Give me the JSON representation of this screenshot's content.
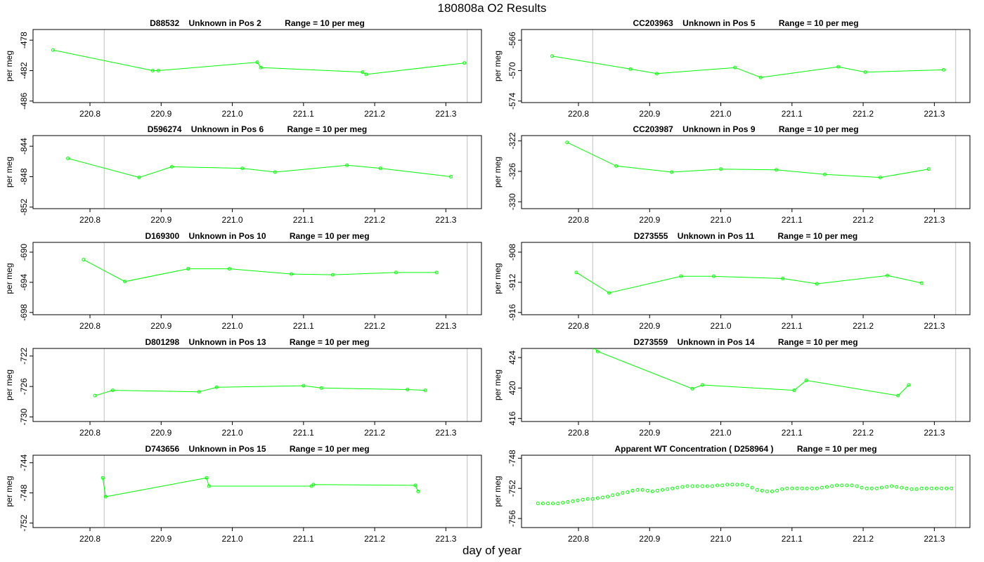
{
  "title": "180808a  O2 Results",
  "x_axis_label": "day of year",
  "line_color": "#00ff00",
  "ref_line_color": "#bfbfbf",
  "chart_data": [
    {
      "type": "line",
      "title": "D88532    Unknown in Pos 2          Range = 10 per meg",
      "ylabel": "per meg",
      "xlim": [
        220.72,
        221.35
      ],
      "ylim": [
        -486.2,
        -476.6
      ],
      "xticks": [
        220.8,
        220.9,
        221.0,
        221.1,
        221.2,
        221.3
      ],
      "yticks": [
        -478,
        -482,
        -486
      ],
      "vlines": [
        220.82,
        221.33
      ],
      "x": [
        220.748,
        220.888,
        220.896,
        221.035,
        221.04,
        221.183,
        221.188,
        221.326
      ],
      "y": [
        -479.3,
        -482.0,
        -482.0,
        -480.9,
        -481.6,
        -482.2,
        -482.5,
        -481.0
      ]
    },
    {
      "type": "line",
      "title": "CC203963    Unknown in Pos 5          Range = 10 per meg",
      "ylabel": "per meg",
      "xlim": [
        220.72,
        221.35
      ],
      "ylim": [
        -574.2,
        -564.6
      ],
      "xticks": [
        220.8,
        220.9,
        221.0,
        221.1,
        221.2,
        221.3
      ],
      "yticks": [
        -566,
        -570,
        -574
      ],
      "vlines": [
        220.82,
        221.33
      ],
      "x": [
        220.763,
        220.873,
        220.91,
        221.02,
        221.056,
        221.165,
        221.203,
        221.313
      ],
      "y": [
        -568.1,
        -569.8,
        -570.4,
        -569.6,
        -570.9,
        -569.5,
        -570.2,
        -569.9
      ]
    },
    {
      "type": "line",
      "title": "D596274    Unknown in Pos 6          Range = 10 per meg",
      "ylabel": "per meg",
      "xlim": [
        220.72,
        221.35
      ],
      "ylim": [
        -852.2,
        -842.6
      ],
      "xticks": [
        220.8,
        220.9,
        221.0,
        221.1,
        221.2,
        221.3
      ],
      "yticks": [
        -844,
        -848,
        -852
      ],
      "vlines": [
        220.82,
        221.33
      ],
      "x": [
        220.769,
        220.869,
        220.915,
        221.014,
        221.06,
        221.161,
        221.208,
        221.307
      ],
      "y": [
        -845.6,
        -848.1,
        -846.7,
        -846.9,
        -847.4,
        -846.5,
        -846.9,
        -848.0
      ]
    },
    {
      "type": "line",
      "title": "CC203987    Unknown in Pos 9          Range = 10 per meg",
      "ylabel": "per meg",
      "xlim": [
        220.72,
        221.35
      ],
      "ylim": [
        -330.9,
        -321.3
      ],
      "xticks": [
        220.8,
        220.9,
        221.0,
        221.1,
        221.2,
        221.3
      ],
      "yticks": [
        -322,
        -326,
        -330
      ],
      "vlines": [
        220.82,
        221.33
      ],
      "x": [
        220.784,
        220.853,
        220.931,
        221.0,
        221.078,
        221.146,
        221.224,
        221.292
      ],
      "y": [
        -322.2,
        -325.3,
        -326.1,
        -325.7,
        -325.8,
        -326.4,
        -326.8,
        -325.7
      ]
    },
    {
      "type": "line",
      "title": "D169300    Unknown in Pos 10          Range = 10 per meg",
      "ylabel": "per meg",
      "xlim": [
        220.72,
        221.35
      ],
      "ylim": [
        -698.3,
        -688.7
      ],
      "xticks": [
        220.8,
        220.9,
        221.0,
        221.1,
        221.2,
        221.3
      ],
      "yticks": [
        -690,
        -694,
        -698
      ],
      "vlines": [
        220.82,
        221.33
      ],
      "x": [
        220.791,
        220.849,
        220.938,
        220.996,
        221.083,
        221.141,
        221.23,
        221.287
      ],
      "y": [
        -691.0,
        -693.9,
        -692.2,
        -692.2,
        -692.9,
        -693.0,
        -692.7,
        -692.7
      ]
    },
    {
      "type": "line",
      "title": "D273555    Unknown in Pos 11          Range = 10 per meg",
      "ylabel": "per meg",
      "xlim": [
        220.72,
        221.35
      ],
      "ylim": [
        -916.3,
        -906.7
      ],
      "xticks": [
        220.8,
        220.9,
        221.0,
        221.1,
        221.2,
        221.3
      ],
      "yticks": [
        -908,
        -912,
        -916
      ],
      "vlines": [
        220.82,
        221.33
      ],
      "x": [
        220.797,
        220.843,
        220.944,
        220.99,
        221.087,
        221.135,
        221.234,
        221.282
      ],
      "y": [
        -910.7,
        -913.4,
        -911.2,
        -911.2,
        -911.5,
        -912.2,
        -911.1,
        -912.1
      ]
    },
    {
      "type": "line",
      "title": "D801298    Unknown in Pos 13          Range = 10 per meg",
      "ylabel": "per meg",
      "xlim": [
        220.72,
        221.35
      ],
      "ylim": [
        -730.6,
        -721.0
      ],
      "xticks": [
        220.8,
        220.9,
        221.0,
        221.1,
        221.2,
        221.3
      ],
      "yticks": [
        -722,
        -726,
        -730
      ],
      "vlines": [
        220.82,
        221.33
      ],
      "x": [
        220.807,
        220.832,
        220.953,
        220.978,
        221.1,
        221.125,
        221.246,
        221.271
      ],
      "y": [
        -727.2,
        -726.5,
        -726.7,
        -726.1,
        -725.9,
        -726.2,
        -726.4,
        -726.5
      ]
    },
    {
      "type": "line",
      "title": "D273559    Unknown in Pos 14          Range = 10 per meg",
      "ylabel": "per meg",
      "xlim": [
        220.72,
        221.35
      ],
      "ylim": [
        415.6,
        425.2
      ],
      "xticks": [
        220.8,
        220.9,
        221.0,
        221.1,
        221.2,
        221.3
      ],
      "yticks": [
        424,
        420,
        416
      ],
      "vlines": [
        220.82,
        221.33
      ],
      "x": [
        220.822,
        220.827,
        220.96,
        220.974,
        221.103,
        221.12,
        221.249,
        221.264
      ],
      "y": [
        425.3,
        424.8,
        419.9,
        420.4,
        419.7,
        421.0,
        419.0,
        420.4
      ]
    },
    {
      "type": "line",
      "title": "D743656    Unknown in Pos 15          Range = 10 per meg",
      "ylabel": "per meg",
      "xlim": [
        220.72,
        221.35
      ],
      "ylim": [
        -752.6,
        -743.0
      ],
      "xticks": [
        220.8,
        220.9,
        221.0,
        221.1,
        221.2,
        221.3
      ],
      "yticks": [
        -744,
        -748,
        -752
      ],
      "vlines": [
        220.82,
        221.33
      ],
      "x": [
        220.818,
        220.822,
        220.964,
        220.967,
        221.111,
        221.114,
        221.257,
        221.261
      ],
      "y": [
        -746.0,
        -748.5,
        -746.0,
        -747.1,
        -747.1,
        -746.9,
        -747.0,
        -747.8
      ]
    },
    {
      "type": "line",
      "markers_only": true,
      "title": "Apparent WT Concentration ( D258964 )          Range = 10 per meg",
      "ylabel": "per meg",
      "xlim": [
        220.72,
        221.35
      ],
      "ylim": [
        -757.2,
        -747.6
      ],
      "xticks": [
        220.8,
        220.9,
        221.0,
        221.1,
        221.2,
        221.3
      ],
      "yticks": [
        -748,
        -752,
        -756
      ],
      "vlines": [
        220.82,
        221.33
      ],
      "x": [
        220.743,
        220.75,
        220.757,
        220.764,
        220.771,
        220.778,
        220.785,
        220.792,
        220.799,
        220.806,
        220.813,
        220.82,
        220.827,
        220.834,
        220.841,
        220.848,
        220.855,
        220.862,
        220.869,
        220.876,
        220.883,
        220.89,
        220.897,
        220.904,
        220.911,
        220.918,
        220.925,
        220.932,
        220.939,
        220.946,
        220.953,
        220.96,
        220.967,
        220.974,
        220.981,
        220.988,
        220.995,
        221.002,
        221.009,
        221.016,
        221.023,
        221.03,
        221.037,
        221.044,
        221.051,
        221.058,
        221.065,
        221.072,
        221.079,
        221.086,
        221.093,
        221.1,
        221.107,
        221.114,
        221.121,
        221.128,
        221.135,
        221.142,
        221.149,
        221.156,
        221.163,
        221.17,
        221.177,
        221.184,
        221.191,
        221.198,
        221.205,
        221.212,
        221.219,
        221.226,
        221.233,
        221.24,
        221.247,
        221.254,
        221.261,
        221.268,
        221.275,
        221.282,
        221.289,
        221.296,
        221.303,
        221.31,
        221.317,
        221.324
      ],
      "y": [
        -754.0,
        -754.0,
        -754.0,
        -754.0,
        -754.0,
        -753.9,
        -753.8,
        -753.7,
        -753.6,
        -753.5,
        -753.4,
        -753.4,
        -753.3,
        -753.2,
        -753.1,
        -752.9,
        -752.8,
        -752.6,
        -752.5,
        -752.3,
        -752.2,
        -752.2,
        -752.3,
        -752.4,
        -752.3,
        -752.2,
        -752.1,
        -752.0,
        -751.9,
        -751.8,
        -751.7,
        -751.7,
        -751.7,
        -751.7,
        -751.7,
        -751.7,
        -751.6,
        -751.6,
        -751.5,
        -751.5,
        -751.5,
        -751.5,
        -751.6,
        -751.9,
        -752.2,
        -752.3,
        -752.4,
        -752.4,
        -752.3,
        -752.1,
        -752.0,
        -752.0,
        -752.0,
        -752.0,
        -752.0,
        -752.0,
        -752.0,
        -751.9,
        -751.8,
        -751.7,
        -751.6,
        -751.6,
        -751.6,
        -751.6,
        -751.7,
        -751.9,
        -752.0,
        -752.0,
        -752.0,
        -751.9,
        -751.8,
        -751.7,
        -751.8,
        -751.9,
        -752.0,
        -752.1,
        -752.1,
        -752.0,
        -752.0,
        -752.0,
        -752.0,
        -752.0,
        -752.0,
        -752.0
      ]
    }
  ]
}
